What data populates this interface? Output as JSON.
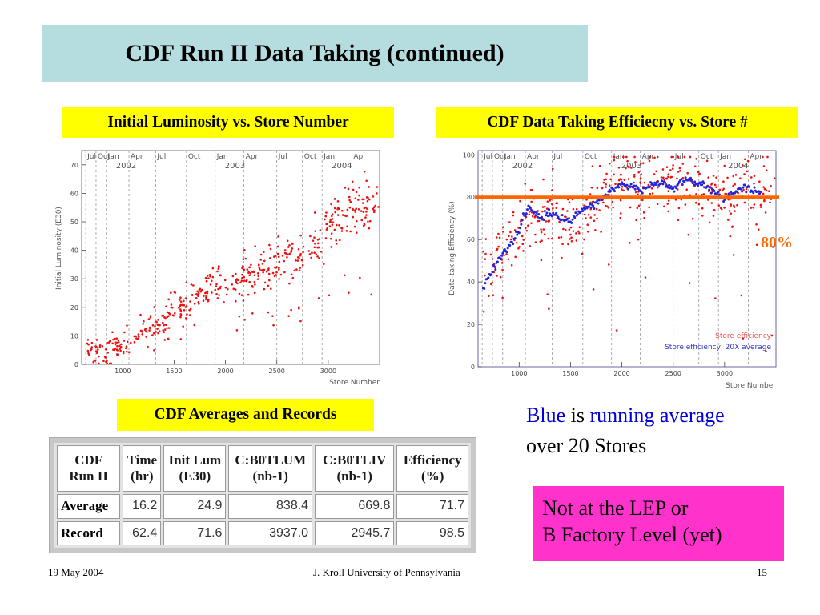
{
  "slide": {
    "title": "CDF Run II Data Taking (continued)",
    "footer": {
      "date": "19 May 2004",
      "author": "J. Kroll University of Pennsylvania",
      "page": "15"
    }
  },
  "labels": {
    "lum_title": "Initial Luminosity vs. Store Number",
    "eff_title": "CDF Data Taking Efficiecny vs. Store #",
    "table_title": "CDF Averages and Records",
    "eighty": "80%",
    "note_blue": "Blue",
    "note_is": " is ",
    "note_running": "running average",
    "note_line2": "over 20 Stores",
    "pink_line1": "Not at the LEP or",
    "pink_line2": "B Factory Level (yet)"
  },
  "colors": {
    "title_bg": "#b5dde0",
    "label_bg": "#ffff00",
    "red": "#ee1111",
    "blue": "#2222dd",
    "orange": "#ff6600",
    "pink": "#ff33cc"
  },
  "table": {
    "headers": [
      "CDF Run II",
      "Time (hr)",
      "Init Lum (E30)",
      "C:B0TLUM (nb-1)",
      "C:B0TLIV (nb-1)",
      "Efficiency (%)"
    ],
    "rows": [
      {
        "label": "Average",
        "values": [
          "16.2",
          "24.9",
          "838.4",
          "669.8",
          "71.7"
        ]
      },
      {
        "label": "Record",
        "values": [
          "62.4",
          "71.6",
          "3937.0",
          "2945.7",
          "98.5"
        ]
      }
    ]
  },
  "chart_data": [
    {
      "type": "scatter",
      "title": "",
      "xlabel": "Store Number",
      "ylabel": "Initial Luminosity (E30)",
      "xlim": [
        600,
        3500
      ],
      "ylim": [
        0,
        75
      ],
      "xticks": [
        1000,
        1500,
        2000,
        2500,
        3000
      ],
      "yticks": [
        0,
        10,
        20,
        30,
        40,
        50,
        60,
        70
      ],
      "month_lines": [
        {
          "store": 640,
          "label": "Jul",
          "year": ""
        },
        {
          "store": 740,
          "label": "Oct",
          "year": ""
        },
        {
          "store": 840,
          "label": "Jan",
          "year": "2002"
        },
        {
          "store": 1060,
          "label": "Apr",
          "year": ""
        },
        {
          "store": 1320,
          "label": "Jul",
          "year": ""
        },
        {
          "store": 1620,
          "label": "Oct",
          "year": ""
        },
        {
          "store": 1900,
          "label": "Jan",
          "year": "2003"
        },
        {
          "store": 2180,
          "label": "Apr",
          "year": ""
        },
        {
          "store": 2500,
          "label": "Jul",
          "year": ""
        },
        {
          "store": 2750,
          "label": "Oct",
          "year": ""
        },
        {
          "store": 2940,
          "label": "Jan",
          "year": "2004"
        },
        {
          "store": 3230,
          "label": "Apr",
          "year": ""
        }
      ],
      "series": [
        {
          "name": "",
          "trend": [
            [
              650,
              4
            ],
            [
              900,
              6
            ],
            [
              1100,
              9
            ],
            [
              1300,
              13
            ],
            [
              1500,
              18
            ],
            [
              1700,
              24
            ],
            [
              1900,
              28
            ],
            [
              2100,
              30
            ],
            [
              2300,
              33
            ],
            [
              2500,
              35
            ],
            [
              2700,
              37
            ],
            [
              2900,
              42
            ],
            [
              3000,
              48
            ],
            [
              3150,
              53
            ],
            [
              3350,
              55
            ]
          ],
          "count": 520,
          "spread": 5
        }
      ]
    },
    {
      "type": "scatter",
      "title": "",
      "xlabel": "Store Number",
      "ylabel": "Data-taking Efficiency (%)",
      "xlim": [
        600,
        3500
      ],
      "ylim": [
        0,
        102
      ],
      "xticks": [
        1000,
        1500,
        2000,
        2500,
        3000
      ],
      "yticks": [
        0,
        20,
        40,
        60,
        80,
        100
      ],
      "reference_line": 80,
      "legend_position": "bottom-right",
      "month_lines": [
        {
          "store": 640,
          "label": "Jul",
          "year": ""
        },
        {
          "store": 740,
          "label": "Oct",
          "year": ""
        },
        {
          "store": 840,
          "label": "Jan",
          "year": "2002"
        },
        {
          "store": 1060,
          "label": "Apr",
          "year": ""
        },
        {
          "store": 1320,
          "label": "Jul",
          "year": ""
        },
        {
          "store": 1620,
          "label": "Oct",
          "year": ""
        },
        {
          "store": 1900,
          "label": "Jan",
          "year": "2003"
        },
        {
          "store": 2180,
          "label": "Apr",
          "year": ""
        },
        {
          "store": 2500,
          "label": "Jul",
          "year": ""
        },
        {
          "store": 2750,
          "label": "Oct",
          "year": ""
        },
        {
          "store": 2940,
          "label": "Jan",
          "year": "2004"
        },
        {
          "store": 3230,
          "label": "Apr",
          "year": ""
        }
      ],
      "series": [
        {
          "name": "Store efficiency",
          "count": 460,
          "spread": 12
        },
        {
          "name": "Store efficiency, 20X average",
          "trend": [
            [
              650,
              38
            ],
            [
              700,
              42
            ],
            [
              800,
              50
            ],
            [
              900,
              57
            ],
            [
              1000,
              64
            ],
            [
              1050,
              72
            ],
            [
              1100,
              76
            ],
            [
              1200,
              70
            ],
            [
              1300,
              73
            ],
            [
              1400,
              70
            ],
            [
              1500,
              68
            ],
            [
              1600,
              74
            ],
            [
              1700,
              76
            ],
            [
              1800,
              79
            ],
            [
              1900,
              84
            ],
            [
              2000,
              86
            ],
            [
              2100,
              85
            ],
            [
              2200,
              83
            ],
            [
              2300,
              86
            ],
            [
              2400,
              87
            ],
            [
              2500,
              84
            ],
            [
              2600,
              88
            ],
            [
              2700,
              87
            ],
            [
              2800,
              86
            ],
            [
              2900,
              83
            ],
            [
              3000,
              79
            ],
            [
              3100,
              82
            ],
            [
              3200,
              85
            ],
            [
              3300,
              83
            ],
            [
              3350,
              82
            ]
          ]
        }
      ]
    }
  ]
}
